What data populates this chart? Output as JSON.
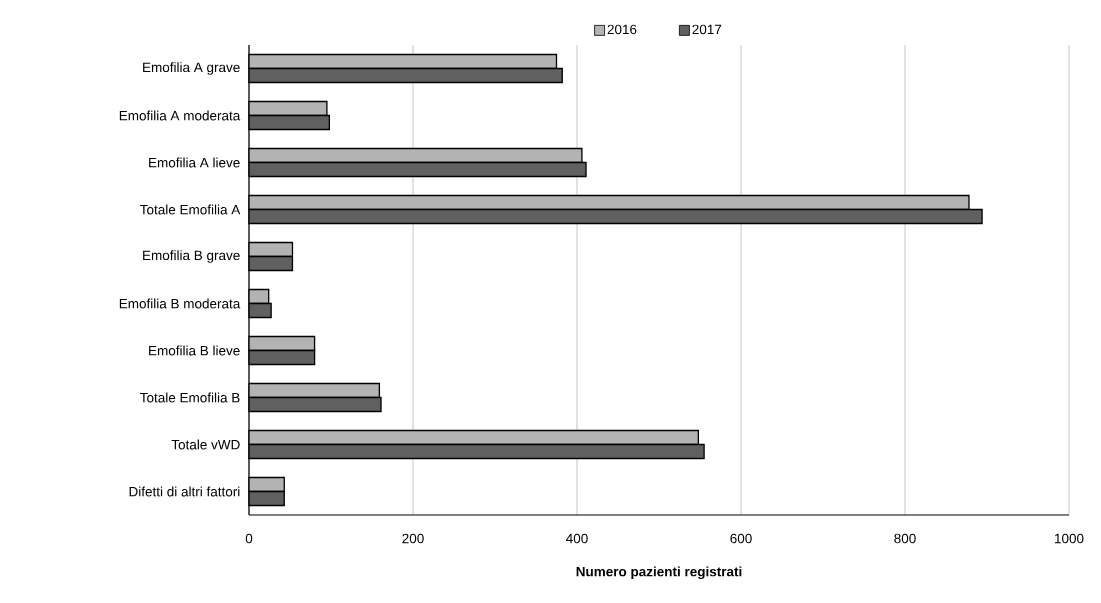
{
  "chart_data": {
    "type": "bar",
    "orientation": "horizontal",
    "categories": [
      "Emofilia A grave",
      "Emofilia A moderata",
      "Emofilia A lieve",
      "Totale Emofilia A",
      "Emofilia B grave",
      "Emofilia B moderata",
      "Emofilia B lieve",
      "Totale Emofilia B",
      "Totale vWD",
      "Difetti di altri fattori"
    ],
    "series": [
      {
        "name": "2016",
        "color": "#b3b3b3",
        "values": [
          375,
          95,
          406,
          878,
          53,
          24,
          80,
          159,
          548,
          43
        ]
      },
      {
        "name": "2017",
        "color": "#606060",
        "values": [
          382,
          98,
          411,
          894,
          53,
          27,
          80,
          161,
          555,
          43
        ]
      }
    ],
    "xlim": [
      0,
      1000
    ],
    "xticks": [
      0,
      200,
      400,
      600,
      800,
      1000
    ],
    "xlabel": "Numero pazienti registrati",
    "grid": "x",
    "legend": "top"
  }
}
